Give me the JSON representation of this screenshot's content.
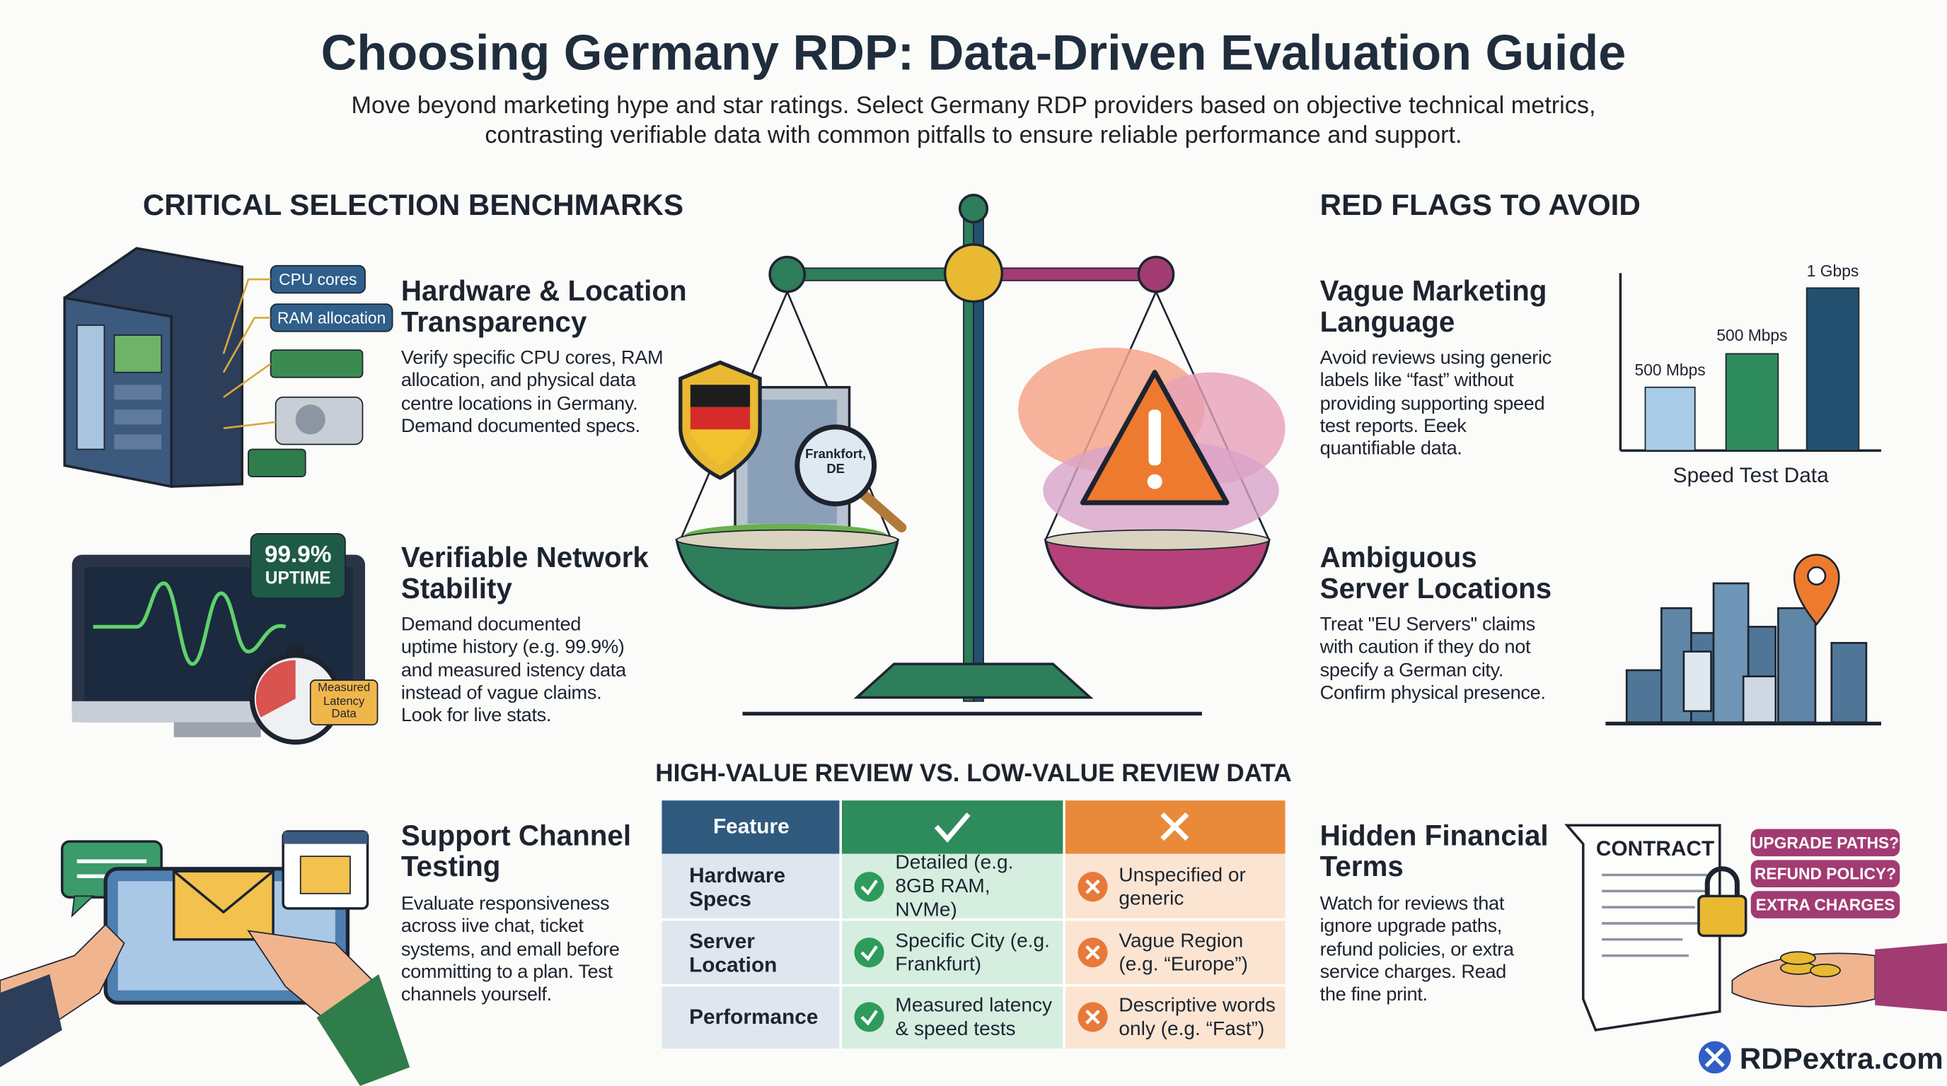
{
  "header": {
    "title": "Choosing Germany RDP: Data-Driven Evaluation Guide",
    "subtitle": "Move beyond marketing hype and star ratings. Select Germany RDP providers based on objective technical metrics, contrasting verifiable data with common pitfalls to ensure reliable performance and support."
  },
  "benchmarks": {
    "heading": "CRITICAL SELECTION BENCHMARKS",
    "items": [
      {
        "title": "Hardware & Location Transparency",
        "body": "Verify specific CPU cores, RAM allocation, and physical data centre locations in Germany. Demand documented specs."
      },
      {
        "title": "Verifiable Network Stability",
        "body": "Demand documented uptime history (e.g. 99.9%) and measured istency data instead of vague claims. Look for live stats."
      },
      {
        "title": "Support Channel Testing",
        "body": "Evaluate responsiveness across iive chat, ticket systems, and emall before committing to a plan. Test channels yourself."
      }
    ]
  },
  "red_flags": {
    "heading": "RED FLAGS TO AVOID",
    "items": [
      {
        "title": "Vague Marketing Language",
        "body": "Avoid reviews using generic labels like “fast” without providing supporting speed test reports. Eeek quantifiable data."
      },
      {
        "title": "Ambiguous Server Locations",
        "body": "Treat \"EU Servers\" claims with caution if they do not specify a German city. Confirm physical presence."
      },
      {
        "title": "Hidden Financial Terms",
        "body": "Watch for reviews that ignore upgrade paths, refund policies, or extra service charges. Read the fine print."
      }
    ]
  },
  "illustrations": {
    "server_labels": [
      "CPU cores",
      "RAM allocation"
    ],
    "uptime_badge": [
      "99.9%",
      "UPTIME"
    ],
    "latency_badge": "Measured Latency Data",
    "magnifier_label": "Frankfort, DE",
    "speed_chart": {
      "bar_labels": [
        "500 Mbps",
        "500 Mbps",
        "1 Gbps"
      ],
      "caption": "Speed Test Data"
    },
    "contract": {
      "title": "CONTRACT",
      "tags": [
        "UPGRADE PATHS?",
        "REFUND POLICY?",
        "EXTRA CHARGES"
      ]
    }
  },
  "comparison": {
    "heading": "HIGH-VALUE REVIEW VS. LOW-VALUE REVIEW DATA",
    "header": [
      "Feature"
    ],
    "rows": [
      [
        "Hardware Specs",
        "Detailed (e.g. 8GB RAM, NVMe)",
        "Unspecified or generic"
      ],
      [
        "Server Location",
        "Specific City (e.g. Frankfurt)",
        "Vague Region (e.g. “Europe”)"
      ],
      [
        "Performance",
        "Measured latency & speed tests",
        "Descriptive words only (e.g. “Fast”)"
      ]
    ]
  },
  "brand": "RDPextra.com"
}
